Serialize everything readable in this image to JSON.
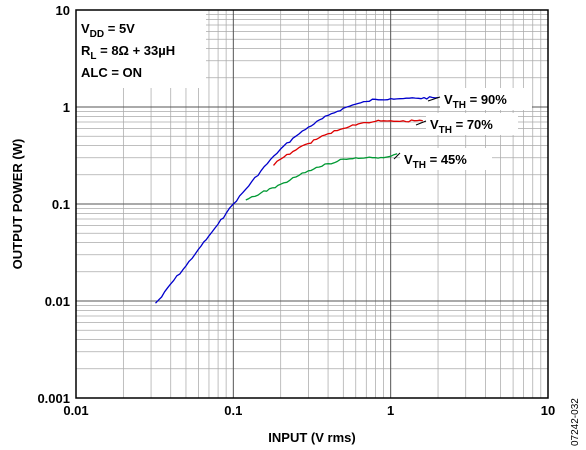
{
  "chart_data": {
    "type": "line",
    "x_scale": "log",
    "y_scale": "log",
    "xlim": [
      0.01,
      10
    ],
    "ylim": [
      0.001,
      10
    ],
    "grid": true,
    "xlabel": "INPUT (V rms)",
    "ylabel": "OUTPUT POWER (W)",
    "x_ticks": [
      "0.01",
      "0.1",
      "1",
      "10"
    ],
    "y_ticks": [
      "0.001",
      "0.01",
      "0.1",
      "1",
      "10"
    ],
    "conditions": {
      "vdd": {
        "main": "V",
        "sub": "DD",
        "rest": " = 5V"
      },
      "rl": {
        "main": "R",
        "sub": "L",
        "rest": " = 8Ω + 33µH"
      },
      "alc": "ALC = ON"
    },
    "series": [
      {
        "name": "V_TH = 90%",
        "label": {
          "main": "V",
          "sub": "TH",
          "rest": " = 90%"
        },
        "color": "#0000cc",
        "x": [
          0.032,
          0.035,
          0.04,
          0.05,
          0.06,
          0.07,
          0.08,
          0.09,
          0.1,
          0.12,
          0.15,
          0.18,
          0.2,
          0.25,
          0.3,
          0.4,
          0.5,
          0.6,
          0.7,
          0.8,
          1.0,
          1.2,
          1.5,
          2.0
        ],
        "y": [
          0.0095,
          0.011,
          0.015,
          0.023,
          0.034,
          0.047,
          0.062,
          0.08,
          0.1,
          0.142,
          0.22,
          0.31,
          0.37,
          0.5,
          0.62,
          0.82,
          0.97,
          1.07,
          1.14,
          1.2,
          1.22,
          1.22,
          1.23,
          1.25
        ]
      },
      {
        "name": "V_TH = 70%",
        "label": {
          "main": "V",
          "sub": "TH",
          "rest": " = 70%"
        },
        "color": "#dd0000",
        "x": [
          0.18,
          0.2,
          0.25,
          0.3,
          0.35,
          0.4,
          0.5,
          0.6,
          0.7,
          0.8,
          0.9,
          1.0,
          1.2,
          1.6
        ],
        "y": [
          0.25,
          0.29,
          0.36,
          0.42,
          0.48,
          0.53,
          0.6,
          0.65,
          0.69,
          0.71,
          0.72,
          0.72,
          0.72,
          0.72
        ]
      },
      {
        "name": "V_TH = 45%",
        "label": {
          "main": "V",
          "sub": "TH",
          "rest": " = 45%"
        },
        "color": "#009933",
        "x": [
          0.12,
          0.15,
          0.2,
          0.25,
          0.3,
          0.35,
          0.4,
          0.5,
          0.6,
          0.7,
          0.8,
          0.9,
          1.0,
          1.1
        ],
        "y": [
          0.11,
          0.13,
          0.16,
          0.19,
          0.22,
          0.24,
          0.26,
          0.29,
          0.3,
          0.3,
          0.3,
          0.3,
          0.31,
          0.33
        ]
      }
    ]
  },
  "figure_id": "07242-032"
}
